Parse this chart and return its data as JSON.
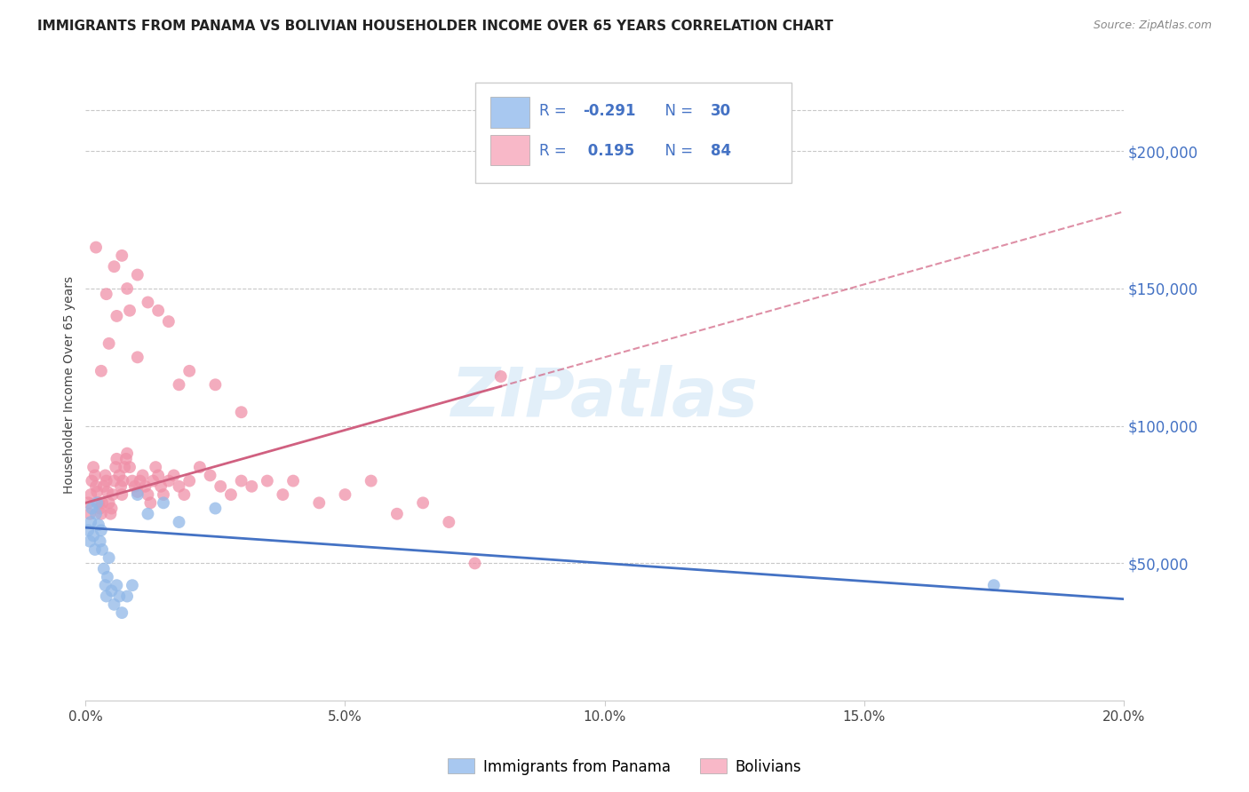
{
  "title": "IMMIGRANTS FROM PANAMA VS BOLIVIAN HOUSEHOLDER INCOME OVER 65 YEARS CORRELATION CHART",
  "source_text": "Source: ZipAtlas.com",
  "ylabel": "Householder Income Over 65 years",
  "watermark": "ZIPatlas",
  "y_tick_labels": [
    "$50,000",
    "$100,000",
    "$150,000",
    "$200,000"
  ],
  "y_tick_values": [
    50000,
    100000,
    150000,
    200000
  ],
  "y_tick_color": "#4472c4",
  "legend_color": "#4472c4",
  "legend_r_color": "#4472c4",
  "panama_patch_color": "#a8c8f0",
  "bolivia_patch_color": "#f8b8c8",
  "panama_scatter_color": "#90b8e8",
  "bolivia_scatter_color": "#f090a8",
  "panama_line_color": "#4472c4",
  "bolivia_line_color": "#d06080",
  "grid_color": "#c8c8c8",
  "title_color": "#222222",
  "source_color": "#888888",
  "panama_points_x": [
    0.05,
    0.08,
    0.1,
    0.12,
    0.15,
    0.18,
    0.2,
    0.22,
    0.25,
    0.28,
    0.3,
    0.32,
    0.35,
    0.38,
    0.4,
    0.42,
    0.45,
    0.5,
    0.55,
    0.6,
    0.65,
    0.7,
    0.8,
    0.9,
    1.0,
    1.2,
    1.5,
    1.8,
    2.5,
    17.5
  ],
  "panama_points_y": [
    62000,
    58000,
    65000,
    70000,
    60000,
    55000,
    68000,
    72000,
    64000,
    58000,
    62000,
    55000,
    48000,
    42000,
    38000,
    45000,
    52000,
    40000,
    35000,
    42000,
    38000,
    32000,
    38000,
    42000,
    75000,
    68000,
    72000,
    65000,
    70000,
    42000
  ],
  "bolivia_points_x": [
    0.05,
    0.08,
    0.1,
    0.12,
    0.15,
    0.18,
    0.2,
    0.22,
    0.25,
    0.28,
    0.3,
    0.32,
    0.35,
    0.38,
    0.4,
    0.42,
    0.45,
    0.48,
    0.5,
    0.52,
    0.55,
    0.58,
    0.6,
    0.65,
    0.68,
    0.7,
    0.72,
    0.75,
    0.78,
    0.8,
    0.85,
    0.9,
    0.95,
    1.0,
    1.05,
    1.1,
    1.15,
    1.2,
    1.25,
    1.3,
    1.35,
    1.4,
    1.45,
    1.5,
    1.6,
    1.7,
    1.8,
    1.9,
    2.0,
    2.2,
    2.4,
    2.6,
    2.8,
    3.0,
    3.2,
    3.5,
    3.8,
    4.0,
    4.5,
    5.0,
    5.5,
    6.0,
    6.5,
    7.0,
    7.5,
    0.3,
    0.45,
    0.6,
    0.8,
    1.0,
    1.2,
    1.4,
    1.6,
    2.0,
    2.5,
    3.0,
    0.2,
    0.4,
    1.8,
    0.55,
    0.7,
    0.85,
    1.0,
    8.0
  ],
  "bolivia_points_y": [
    72000,
    68000,
    75000,
    80000,
    85000,
    82000,
    78000,
    76000,
    72000,
    70000,
    68000,
    72000,
    78000,
    82000,
    80000,
    76000,
    72000,
    68000,
    70000,
    75000,
    80000,
    85000,
    88000,
    82000,
    78000,
    75000,
    80000,
    85000,
    88000,
    90000,
    85000,
    80000,
    78000,
    76000,
    80000,
    82000,
    78000,
    75000,
    72000,
    80000,
    85000,
    82000,
    78000,
    75000,
    80000,
    82000,
    78000,
    75000,
    80000,
    85000,
    82000,
    78000,
    75000,
    80000,
    78000,
    80000,
    75000,
    80000,
    72000,
    75000,
    80000,
    68000,
    72000,
    65000,
    50000,
    120000,
    130000,
    140000,
    150000,
    155000,
    145000,
    142000,
    138000,
    120000,
    115000,
    105000,
    165000,
    148000,
    115000,
    158000,
    162000,
    142000,
    125000,
    118000
  ]
}
